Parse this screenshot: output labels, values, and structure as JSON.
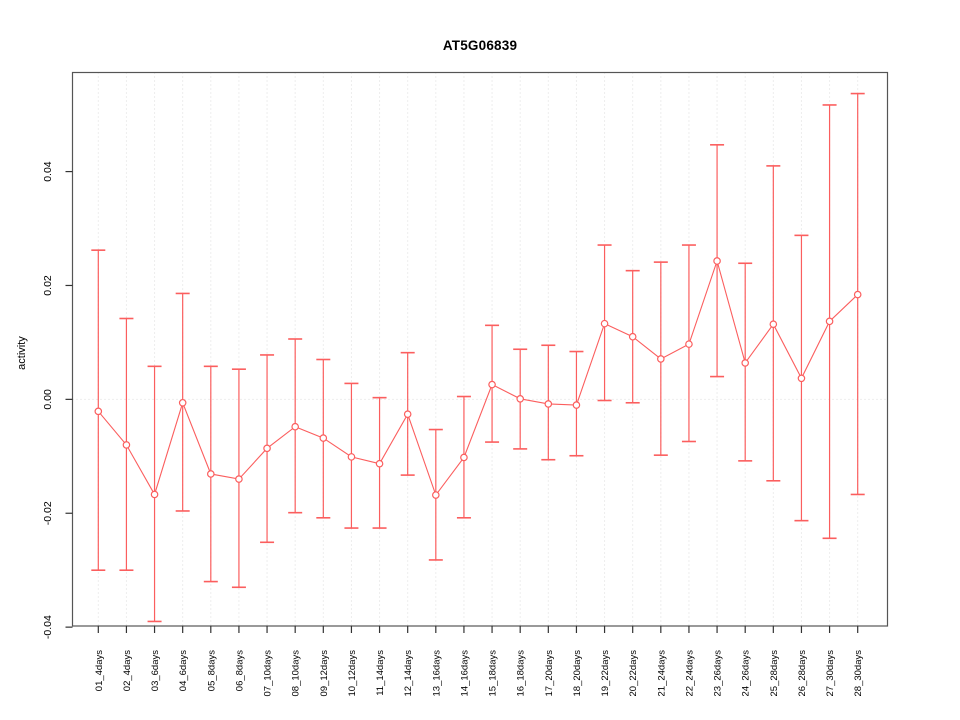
{
  "chart_data": {
    "type": "line",
    "title": "AT5G06839",
    "ylabel": "activity",
    "xlabel": "",
    "legend_position": "none",
    "marker": "open-circle",
    "grid": {
      "vertical": "dotted-at-each-category",
      "horizontal": "dotted-zero-line"
    },
    "categories": [
      "01_4days",
      "02_4days",
      "03_6days",
      "04_6days",
      "05_8days",
      "06_8days",
      "07_10days",
      "08_10days",
      "09_12days",
      "10_12days",
      "11_14days",
      "12_14days",
      "13_16days",
      "14_16days",
      "15_18days",
      "16_18days",
      "17_20days",
      "18_20days",
      "19_22days",
      "20_22days",
      "21_24days",
      "22_24days",
      "23_26days",
      "24_26days",
      "25_28days",
      "26_28days",
      "27_30days",
      "28_30days"
    ],
    "series": [
      {
        "name": "activity",
        "values": [
          -0.0021,
          -0.008,
          -0.0167,
          -0.0006,
          -0.0131,
          -0.014,
          -0.0086,
          -0.0048,
          -0.0068,
          -0.0101,
          -0.0113,
          -0.0026,
          -0.0168,
          -0.0102,
          0.0026,
          0.0001,
          -0.0008,
          -0.001,
          0.0133,
          0.011,
          0.0071,
          0.0097,
          0.0243,
          0.0064,
          0.0132,
          0.0037,
          0.0137,
          0.0184
        ],
        "error_upper": [
          0.0262,
          0.0142,
          0.0058,
          0.0186,
          0.0058,
          0.0053,
          0.0078,
          0.0106,
          0.007,
          0.0028,
          0.0003,
          0.0082,
          -0.0053,
          0.0005,
          0.013,
          0.0088,
          0.0095,
          0.0084,
          0.0271,
          0.0226,
          0.0241,
          0.0271,
          0.0447,
          0.0239,
          0.041,
          0.0288,
          0.0517,
          0.0537
        ],
        "error_lower": [
          -0.03,
          -0.03,
          -0.039,
          -0.0196,
          -0.032,
          -0.033,
          -0.0251,
          -0.0199,
          -0.0208,
          -0.0226,
          -0.0226,
          -0.0133,
          -0.0282,
          -0.0208,
          -0.0075,
          -0.0087,
          -0.0106,
          -0.0099,
          -0.0002,
          -0.0006,
          -0.0098,
          -0.0074,
          0.004,
          -0.0108,
          -0.0143,
          -0.0213,
          -0.0244,
          -0.0167
        ]
      }
    ],
    "yticks": {
      "values": [
        -0.04,
        -0.02,
        0.0,
        0.02,
        0.04
      ],
      "labels": [
        "-0.04",
        "-0.02",
        "0.00",
        "0.02",
        "0.04"
      ]
    },
    "ylim": [
      -0.0398,
      0.0574
    ],
    "colors": {
      "series": "#FB5E5E",
      "grid": "#DCDCDC",
      "axis": "#555555",
      "tick": "#333333",
      "text": "#000000",
      "background": "#FFFFFF"
    }
  }
}
